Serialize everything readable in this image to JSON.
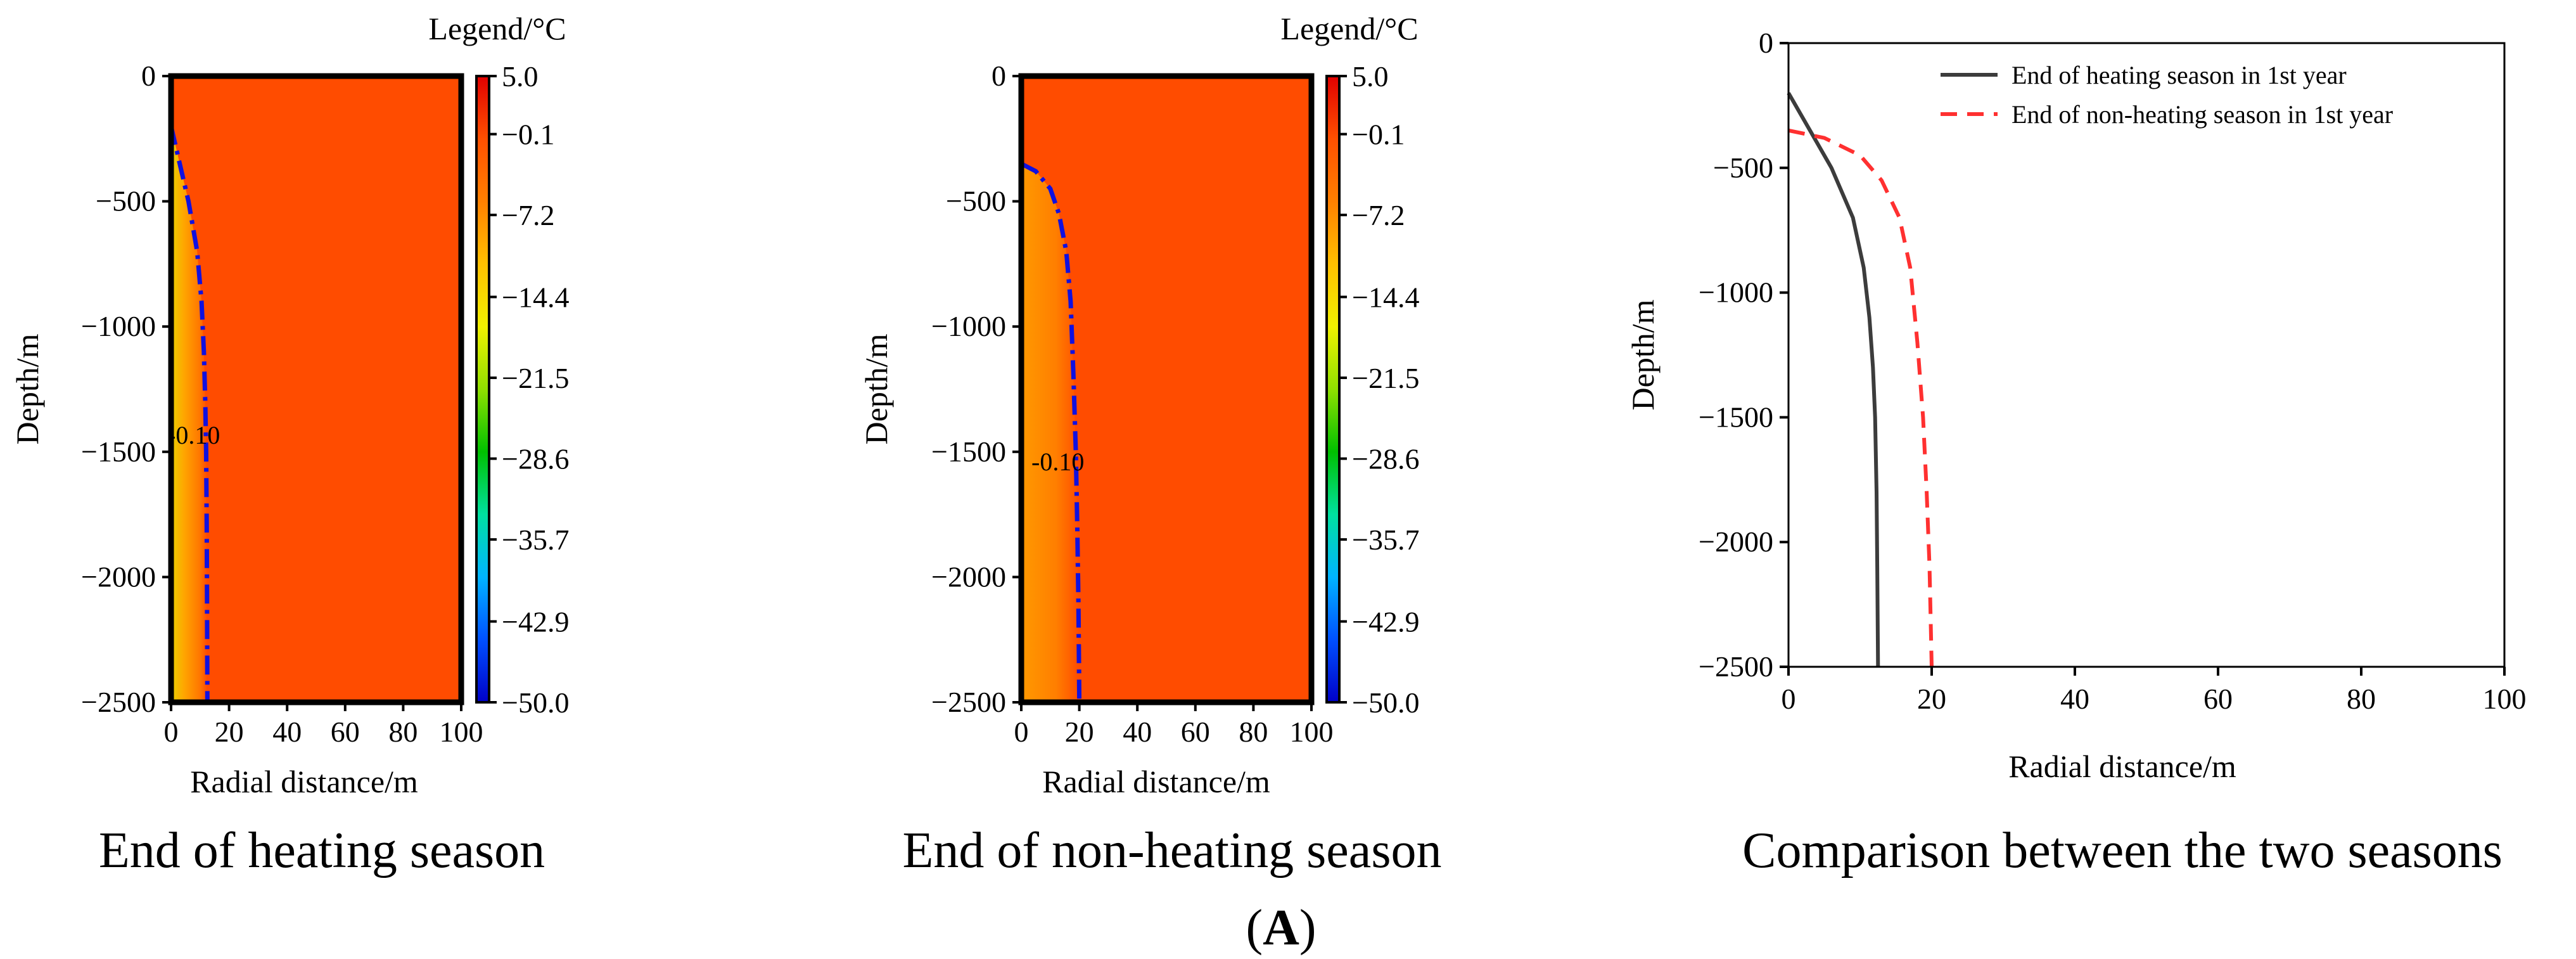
{
  "figure_letter": "A",
  "chart_data": [
    {
      "type": "heatmap",
      "title": "End of heating season",
      "xlabel": "Radial distance/m",
      "ylabel": "Depth/m",
      "xlim": [
        0,
        100
      ],
      "ylim": [
        -2500,
        0
      ],
      "xticks": [
        "0",
        "20",
        "40",
        "60",
        "80",
        "100"
      ],
      "yticks": [
        "0",
        "-500",
        "-1000",
        "-1500",
        "-2000",
        "-2500"
      ],
      "colorbar": {
        "title": "Legend/°C",
        "ticks": [
          "5.0",
          "-0.1",
          "-7.2",
          "-14.4",
          "-21.5",
          "-28.6",
          "-35.7",
          "-42.9",
          "-50.0"
        ],
        "range": [
          -50.0,
          5.0
        ],
        "colors": [
          "#0000c8",
          "#0050ff",
          "#00b4ff",
          "#00e0a0",
          "#00c000",
          "#90e000",
          "#f0f000",
          "#ffc000",
          "#ff8000",
          "#ff5000",
          "#e00000"
        ]
      },
      "background_color": "#ff4c00",
      "contour": {
        "label": "-0.10",
        "depth": [
          -200,
          -350,
          -500,
          -700,
          -900,
          -1100,
          -1300,
          -1500,
          -1800,
          -2100,
          -2500
        ],
        "radial": [
          0,
          3,
          6,
          9,
          10.5,
          11.3,
          11.8,
          12.1,
          12.3,
          12.4,
          12.5
        ],
        "style": "dash-dot",
        "color": "#1010e0"
      }
    },
    {
      "type": "heatmap",
      "title": "End of non-heating season",
      "xlabel": "Radial distance/m",
      "ylabel": "Depth/m",
      "xlim": [
        0,
        100
      ],
      "ylim": [
        -2500,
        0
      ],
      "xticks": [
        "0",
        "20",
        "40",
        "60",
        "80",
        "100"
      ],
      "yticks": [
        "0",
        "-500",
        "-1000",
        "-1500",
        "-2000",
        "-2500"
      ],
      "colorbar": {
        "title": "Legend/°C",
        "ticks": [
          "5.0",
          "-0.1",
          "-7.2",
          "-14.4",
          "-21.5",
          "-28.6",
          "-35.7",
          "-42.9",
          "-50.0"
        ],
        "range": [
          -50.0,
          5.0
        ],
        "colors": [
          "#0000c8",
          "#0050ff",
          "#00b4ff",
          "#00e0a0",
          "#00c000",
          "#90e000",
          "#f0f000",
          "#ffc000",
          "#ff8000",
          "#ff5000",
          "#e00000"
        ]
      },
      "background_color": "#ff4c00",
      "contour": {
        "label": "-0.10",
        "depth": [
          -350,
          -380,
          -450,
          -550,
          -700,
          -900,
          -1200,
          -1500,
          -1800,
          -2100,
          -2500
        ],
        "radial": [
          0,
          5,
          10,
          13,
          15.5,
          17,
          18,
          18.8,
          19.3,
          19.7,
          20
        ],
        "style": "dash-dot",
        "color": "#1010e0"
      }
    },
    {
      "type": "line",
      "title": "Comparison between the two seasons",
      "xlabel": "Radial distance/m",
      "ylabel": "Depth/m",
      "xlim": [
        0,
        100
      ],
      "ylim": [
        -2500,
        0
      ],
      "xticks": [
        "0",
        "20",
        "40",
        "60",
        "80",
        "100"
      ],
      "yticks": [
        "0",
        "-500",
        "-1000",
        "-1500",
        "-2000",
        "-2500"
      ],
      "legend_position": "top-right",
      "series": [
        {
          "name": "End of heating season in 1st year",
          "color": "#3c3c3c",
          "style": "solid",
          "x": [
            0,
            3,
            6,
            9,
            10.5,
            11.3,
            11.8,
            12.1,
            12.3,
            12.4,
            12.5
          ],
          "y": [
            -200,
            -350,
            -500,
            -700,
            -900,
            -1100,
            -1300,
            -1500,
            -1800,
            -2100,
            -2500
          ]
        },
        {
          "name": "End of non-heating season in 1st year",
          "color": "#ff3030",
          "style": "dashed",
          "x": [
            0,
            5,
            10,
            13,
            15.5,
            17,
            18,
            18.8,
            19.3,
            19.7,
            20
          ],
          "y": [
            -350,
            -380,
            -450,
            -550,
            -700,
            -900,
            -1200,
            -1500,
            -1800,
            -2100,
            -2500
          ]
        }
      ]
    }
  ]
}
